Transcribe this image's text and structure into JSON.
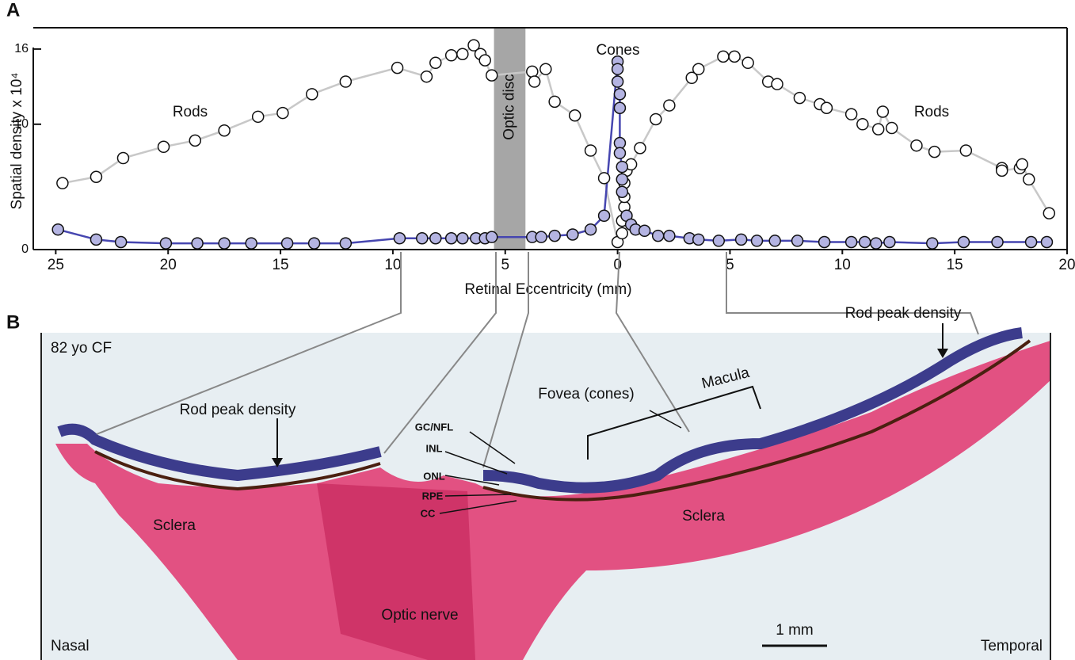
{
  "chart_data": {
    "type": "scatter",
    "panel_label": "A",
    "ylabel": "Spatial density x 10⁴",
    "xlabel": "Retinal Eccentricity (mm)",
    "xlim": [
      -26,
      20
    ],
    "ylim": [
      0,
      17.7
    ],
    "xticks": [
      {
        "value": -25,
        "label": "25"
      },
      {
        "value": -20,
        "label": "20"
      },
      {
        "value": -15,
        "label": "15"
      },
      {
        "value": -10,
        "label": "10"
      },
      {
        "value": -5,
        "label": "5"
      },
      0,
      5,
      10,
      15,
      20
    ],
    "yticks": [
      0,
      10,
      16
    ],
    "optic_disc": {
      "label": "Optic disc",
      "range": [
        -5.5,
        -4.1
      ],
      "color": "#a6a6a6"
    },
    "series": [
      {
        "name": "Rods",
        "color": "#ffffff",
        "line_color": "#c8c8c8",
        "x": [
          -24.7,
          -23.2,
          -22,
          -20.2,
          -18.8,
          -17.5,
          -16,
          -14.9,
          -13.6,
          -12.1,
          -9.8,
          -8.5,
          -8.1,
          -7.4,
          -6.9,
          -6.4,
          -6.1,
          -5.9,
          -5.6,
          -3.8,
          -3.7,
          -3.2,
          -2.8,
          -1.9,
          -1.2,
          -0.6,
          0,
          0.2,
          0.2,
          0.3,
          0.3,
          0.3,
          0.4,
          0.6,
          1.0,
          1.7,
          2.3,
          3.3,
          3.6,
          4.7,
          5.2,
          5.8,
          6.7,
          7.1,
          8.1,
          9.0,
          9.3,
          10.4,
          10.9,
          11.6,
          11.8,
          12.2,
          13.3,
          14.1,
          15.5,
          17.1,
          17.1,
          17.9,
          18.0,
          18.3,
          19.2
        ],
        "values": [
          5.3,
          5.8,
          7.3,
          8.2,
          8.7,
          9.5,
          10.6,
          10.9,
          12.4,
          13.4,
          14.5,
          13.8,
          14.9,
          15.5,
          15.6,
          16.3,
          15.6,
          15.1,
          13.9,
          14.2,
          13.4,
          14.4,
          11.8,
          10.7,
          7.9,
          5.7,
          0.6,
          1.3,
          2.3,
          3.4,
          4.2,
          5.3,
          6.3,
          6.8,
          8.1,
          10.4,
          11.5,
          13.7,
          14.4,
          15.4,
          15.4,
          14.9,
          13.4,
          13.2,
          12.1,
          11.6,
          11.3,
          10.8,
          10.0,
          9.6,
          11.0,
          9.7,
          8.3,
          7.8,
          7.9,
          6.5,
          6.3,
          6.5,
          6.8,
          5.6,
          2.9
        ]
      },
      {
        "name": "Cones",
        "color": "#b4b4e2",
        "line_color": "#4646b0",
        "x": [
          -24.9,
          -23.2,
          -22.1,
          -20.1,
          -18.7,
          -17.5,
          -16.3,
          -14.7,
          -13.5,
          -12.1,
          -9.7,
          -8.7,
          -8.1,
          -7.4,
          -6.9,
          -6.3,
          -5.9,
          -5.6,
          -3.8,
          -3.4,
          -2.8,
          -2.0,
          -1.2,
          -0.6,
          0,
          0,
          0,
          0.1,
          0.1,
          0.1,
          0.1,
          0.2,
          0.2,
          0.2,
          0.4,
          0.6,
          0.8,
          1.2,
          1.8,
          2.3,
          3.2,
          3.6,
          4.5,
          5.5,
          6.2,
          7.0,
          8.0,
          9.2,
          10.4,
          11.0,
          11.5,
          12.1,
          14.0,
          15.4,
          16.9,
          18.4,
          19.1
        ],
        "values": [
          1.6,
          0.8,
          0.6,
          0.5,
          0.5,
          0.5,
          0.5,
          0.5,
          0.5,
          0.5,
          0.9,
          0.9,
          0.9,
          0.9,
          0.9,
          0.9,
          0.9,
          1.0,
          1.0,
          1.0,
          1.1,
          1.2,
          1.6,
          2.7,
          15.0,
          14.4,
          13.4,
          12.4,
          11.3,
          8.5,
          7.7,
          6.6,
          5.6,
          4.6,
          2.7,
          2.0,
          1.6,
          1.5,
          1.1,
          1.1,
          0.9,
          0.8,
          0.7,
          0.8,
          0.7,
          0.7,
          0.7,
          0.6,
          0.6,
          0.6,
          0.5,
          0.6,
          0.5,
          0.6,
          0.6,
          0.6,
          0.6
        ]
      }
    ]
  },
  "panel_b": {
    "panel_label": "B",
    "specimen": "82 yo CF",
    "labels": {
      "rod_peak_left": "Rod peak density",
      "rod_peak_right": "Rod peak density",
      "fovea": "Fovea (cones)",
      "macula": "Macula",
      "gc_nfl": "GC/NFL",
      "inl": "INL",
      "onl": "ONL",
      "rpe": "RPE",
      "cc": "CC",
      "sclera_left": "Sclera",
      "sclera_right": "Sclera",
      "optic_nerve": "Optic nerve",
      "nasal": "Nasal",
      "temporal": "Temporal",
      "scale_bar": "1 mm"
    }
  }
}
